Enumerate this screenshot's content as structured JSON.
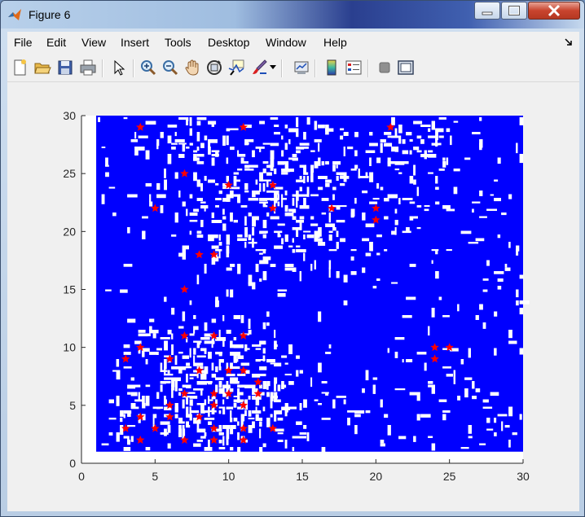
{
  "window": {
    "title": "Figure 6",
    "app_icon": "matlab-icon"
  },
  "menu": [
    {
      "label": "File"
    },
    {
      "label": "Edit"
    },
    {
      "label": "View"
    },
    {
      "label": "Insert"
    },
    {
      "label": "Tools"
    },
    {
      "label": "Desktop"
    },
    {
      "label": "Window"
    },
    {
      "label": "Help"
    }
  ],
  "toolbar": [
    "new-figure-icon",
    "open-file-icon",
    "save-icon",
    "print-icon",
    "pointer-icon",
    "zoom-in-icon",
    "zoom-out-icon",
    "pan-icon",
    "rotate-3d-icon",
    "data-cursor-icon",
    "brush-icon",
    "link-plot-icon",
    "colorbar-icon",
    "legend-icon",
    "hide-plot-tools-icon",
    "show-plot-tools-icon"
  ],
  "colors": {
    "field": "#0000ff",
    "gap": "#ffffff",
    "marker": "#ff0000"
  },
  "chart_data": {
    "type": "scatter",
    "description_free": true,
    "xlim": [
      0,
      30
    ],
    "ylim": [
      0,
      30
    ],
    "xticks": [
      "0",
      "5",
      "10",
      "15",
      "20",
      "25",
      "30"
    ],
    "yticks": [
      "0",
      "5",
      "10",
      "15",
      "20",
      "25",
      "30"
    ],
    "field_extent": {
      "x": [
        1,
        30
      ],
      "y": [
        1,
        30
      ]
    },
    "series": [
      {
        "marker": "star",
        "color": "#ff0000",
        "points": [
          [
            4,
            29
          ],
          [
            11,
            29
          ],
          [
            21,
            29
          ],
          [
            7,
            25
          ],
          [
            13,
            24
          ],
          [
            10,
            24
          ],
          [
            5,
            22
          ],
          [
            13,
            22
          ],
          [
            17,
            22
          ],
          [
            20,
            22
          ],
          [
            20,
            21
          ],
          [
            8,
            18
          ],
          [
            9,
            18
          ],
          [
            7,
            15
          ],
          [
            7,
            11
          ],
          [
            9,
            11
          ],
          [
            11,
            11
          ],
          [
            3,
            9
          ],
          [
            4,
            10
          ],
          [
            6,
            9
          ],
          [
            8,
            8
          ],
          [
            10,
            8
          ],
          [
            11,
            8
          ],
          [
            12,
            7
          ],
          [
            7,
            6
          ],
          [
            9,
            6
          ],
          [
            10,
            6
          ],
          [
            12,
            6
          ],
          [
            6,
            5
          ],
          [
            9,
            5
          ],
          [
            11,
            5
          ],
          [
            4,
            4
          ],
          [
            6,
            4
          ],
          [
            8,
            4
          ],
          [
            3,
            3
          ],
          [
            5,
            3
          ],
          [
            9,
            3
          ],
          [
            11,
            3
          ],
          [
            13,
            3
          ],
          [
            4,
            2
          ],
          [
            7,
            2
          ],
          [
            9,
            2
          ],
          [
            11,
            2
          ],
          [
            24,
            9
          ],
          [
            24,
            10
          ],
          [
            25,
            10
          ]
        ]
      }
    ]
  }
}
